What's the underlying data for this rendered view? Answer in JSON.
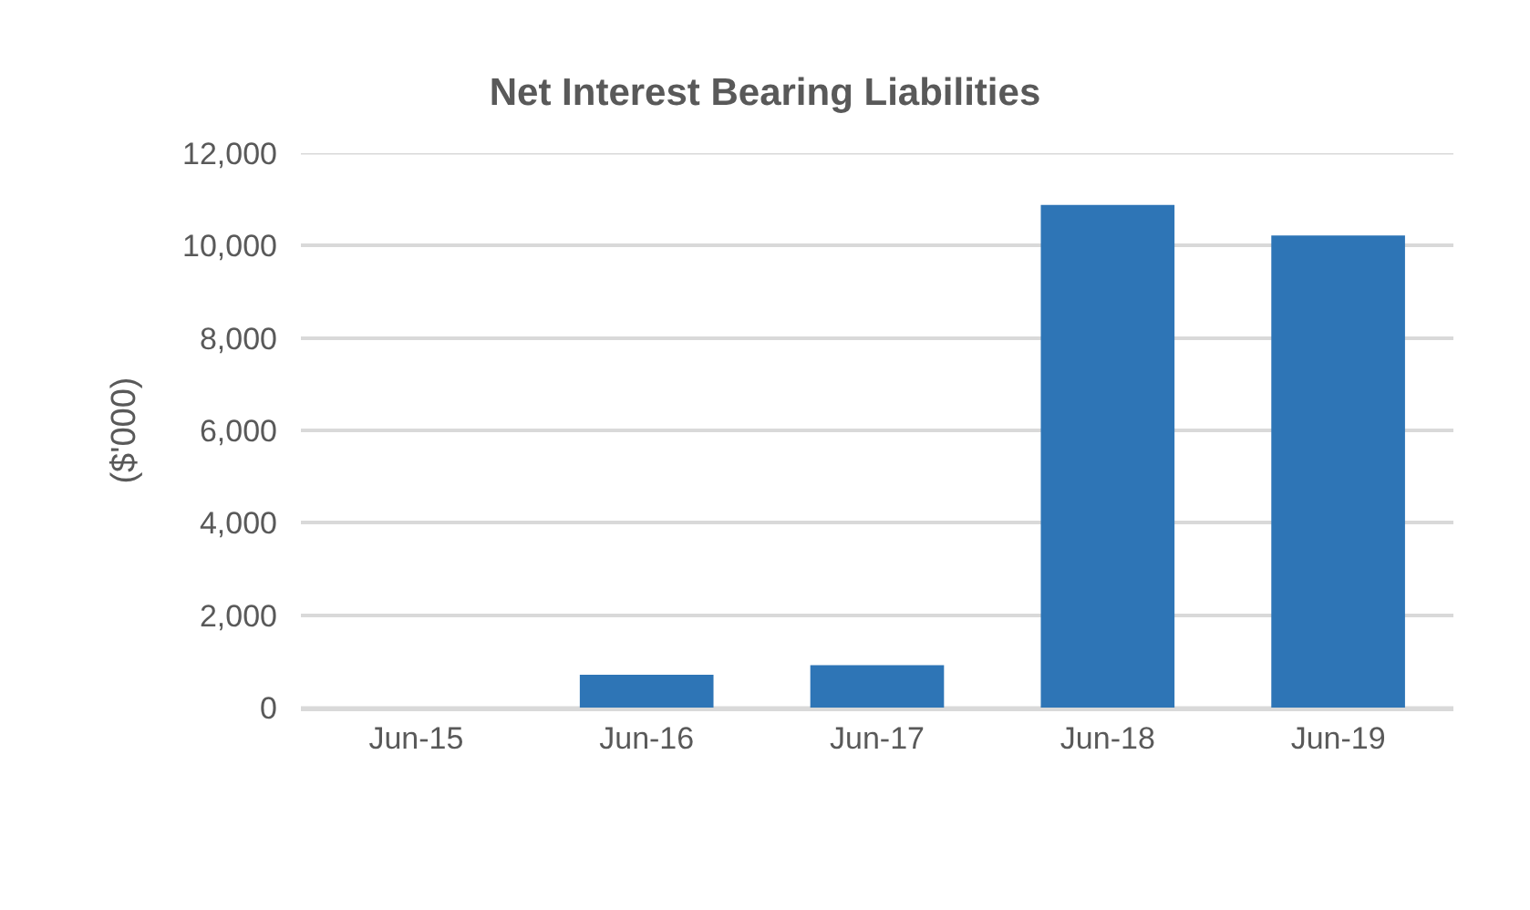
{
  "chart_data": {
    "type": "bar",
    "title": "Net Interest Bearing Liabilities",
    "ylabel": "($'000)",
    "categories": [
      "Jun-15",
      "Jun-16",
      "Jun-17",
      "Jun-18",
      "Jun-19"
    ],
    "values": [
      0,
      710,
      920,
      10880,
      10220
    ],
    "color": "#2e75b6",
    "ylim": [
      0,
      12000
    ],
    "yticks": [
      {
        "value": 0,
        "label": "0"
      },
      {
        "value": 2000,
        "label": "2,000"
      },
      {
        "value": 4000,
        "label": "4,000"
      },
      {
        "value": 6000,
        "label": "6,000"
      },
      {
        "value": 8000,
        "label": "8,000"
      },
      {
        "value": 10000,
        "label": "10,000"
      },
      {
        "value": 12000,
        "label": "12,000"
      }
    ],
    "grid": "y"
  }
}
